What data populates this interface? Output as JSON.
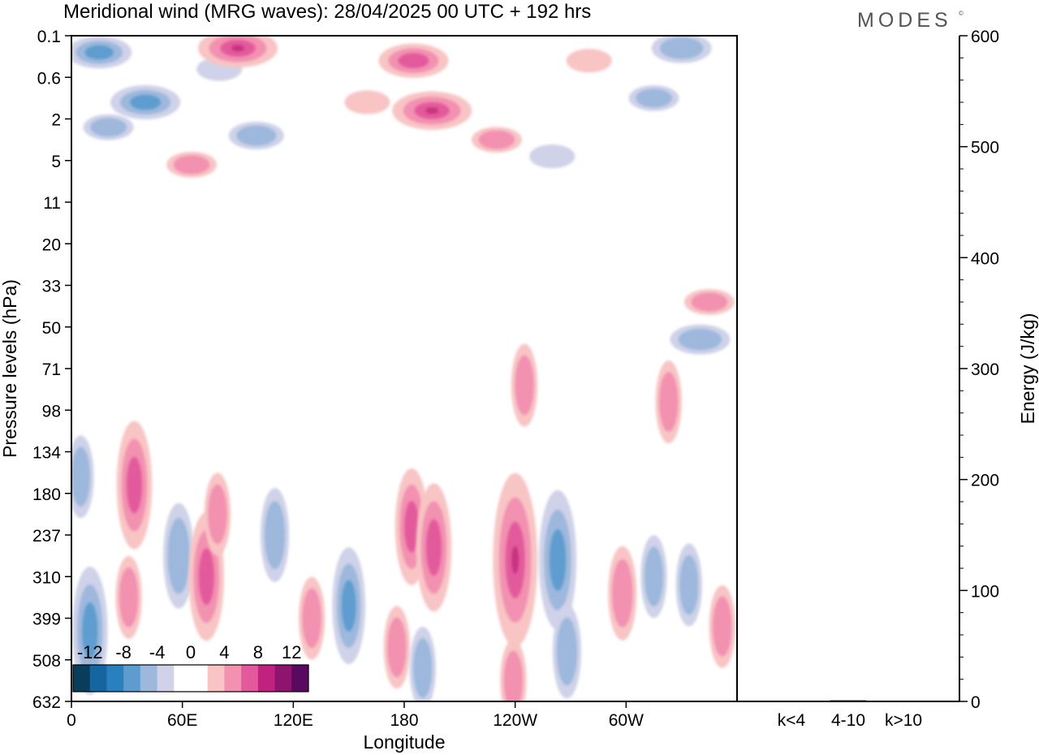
{
  "chart_data": {
    "type": "heatmap",
    "title": "Meridional wind (MRG waves):  28/04/2025  00 UTC  + 192 hrs",
    "brand": "MODES",
    "brand_mark": "©",
    "xlabel": "Longitude",
    "ylabel": "Pressure levels (hPa)",
    "y2label": "Energy (J/kg)",
    "x_ticks": [
      "0",
      "60E",
      "120E",
      "180",
      "120W",
      "60W"
    ],
    "y_levels": [
      "0.1",
      "0.6",
      "2",
      "5",
      "11",
      "20",
      "33",
      "50",
      "71",
      "98",
      "134",
      "180",
      "237",
      "310",
      "399",
      "508",
      "632"
    ],
    "energy_ticks": [
      0,
      100,
      200,
      300,
      400,
      500,
      600
    ],
    "energy_ylim": [
      0,
      600
    ],
    "energy_categories": [
      "k<4",
      "4-10",
      "k>10"
    ],
    "energy_values": [
      0,
      1,
      0
    ],
    "colorbar": {
      "tick_labels": [
        "-12",
        "-8",
        "-4",
        "0",
        "4",
        "8",
        "12"
      ],
      "colors": [
        "#0a3d5c",
        "#1565a0",
        "#2a7fbf",
        "#5e9ccf",
        "#9db8dc",
        "#cfd2e8",
        "#ffffff",
        "#ffffff",
        "#f8c4c4",
        "#f291b0",
        "#e35a9c",
        "#c2227f",
        "#8e1470",
        "#5a0a5e"
      ]
    },
    "colors": {
      "neg_light": "#cfd2e8",
      "neg_mid": "#9db8dc",
      "neg_strong": "#5e9ccf",
      "neg_darker": "#3f88c5",
      "pos_light": "#f8c4c4",
      "pos_mid": "#f291b0",
      "pos_strong": "#e35a9c",
      "pos_darker": "#c8327f"
    },
    "features": [
      {
        "sign": "neg",
        "lon": 15,
        "level_idx": 0.4,
        "amp": 6
      },
      {
        "sign": "neg",
        "lon": 40,
        "level_idx": 1.6,
        "amp": 7
      },
      {
        "sign": "neg",
        "lon": 20,
        "level_idx": 2.2,
        "amp": 3
      },
      {
        "sign": "neg",
        "lon": 80,
        "level_idx": 0.8,
        "amp": 2
      },
      {
        "sign": "neg",
        "lon": 100,
        "level_idx": 2.4,
        "amp": 4
      },
      {
        "sign": "neg",
        "lon": 260,
        "level_idx": 2.9,
        "amp": 2
      },
      {
        "sign": "neg",
        "lon": 330,
        "level_idx": 0.3,
        "amp": 5
      },
      {
        "sign": "neg",
        "lon": 315,
        "level_idx": 1.5,
        "amp": 3
      },
      {
        "sign": "neg",
        "lon": 340,
        "level_idx": 7.3,
        "amp": 5
      },
      {
        "sign": "pos",
        "lon": 90,
        "level_idx": 0.3,
        "amp": 9
      },
      {
        "sign": "pos",
        "lon": 185,
        "level_idx": 0.6,
        "amp": 7
      },
      {
        "sign": "pos",
        "lon": 195,
        "level_idx": 1.8,
        "amp": 9
      },
      {
        "sign": "pos",
        "lon": 230,
        "level_idx": 2.5,
        "amp": 3
      },
      {
        "sign": "pos",
        "lon": 160,
        "level_idx": 1.6,
        "amp": 2
      },
      {
        "sign": "pos",
        "lon": 65,
        "level_idx": 3.1,
        "amp": 3
      },
      {
        "sign": "pos",
        "lon": 280,
        "level_idx": 0.6,
        "amp": 2
      },
      {
        "sign": "pos",
        "lon": 345,
        "level_idx": 6.4,
        "amp": 3
      },
      {
        "sign": "pos",
        "lon": 245,
        "level_idx": 8.4,
        "amp": 3
      },
      {
        "sign": "pos",
        "lon": 323,
        "level_idx": 8.8,
        "amp": 3
      },
      {
        "sign": "pos",
        "lon": 34,
        "level_idx": 10.8,
        "amp": 7
      },
      {
        "sign": "pos",
        "lon": 31,
        "level_idx": 13.5,
        "amp": 3
      },
      {
        "sign": "neg",
        "lon": 58,
        "level_idx": 12.5,
        "amp": 5
      },
      {
        "sign": "pos",
        "lon": 73,
        "level_idx": 13.0,
        "amp": 7
      },
      {
        "sign": "pos",
        "lon": 79,
        "level_idx": 11.5,
        "amp": 3
      },
      {
        "sign": "neg",
        "lon": 10,
        "level_idx": 14.3,
        "amp": 7
      },
      {
        "sign": "neg",
        "lon": 5,
        "level_idx": 10.6,
        "amp": 3
      },
      {
        "sign": "neg",
        "lon": 110,
        "level_idx": 12.0,
        "amp": 4
      },
      {
        "sign": "pos",
        "lon": 130,
        "level_idx": 14.0,
        "amp": 3
      },
      {
        "sign": "neg",
        "lon": 150,
        "level_idx": 13.7,
        "amp": 6
      },
      {
        "sign": "pos",
        "lon": 184,
        "level_idx": 11.8,
        "amp": 6
      },
      {
        "sign": "pos",
        "lon": 196,
        "level_idx": 12.3,
        "amp": 7
      },
      {
        "sign": "pos",
        "lon": 176,
        "level_idx": 14.7,
        "amp": 3
      },
      {
        "sign": "neg",
        "lon": 190,
        "level_idx": 15.2,
        "amp": 3
      },
      {
        "sign": "pos",
        "lon": 240,
        "level_idx": 12.6,
        "amp": 11
      },
      {
        "sign": "pos",
        "lon": 239,
        "level_idx": 15.5,
        "amp": 3
      },
      {
        "sign": "neg",
        "lon": 263,
        "level_idx": 12.6,
        "amp": 8
      },
      {
        "sign": "neg",
        "lon": 268,
        "level_idx": 14.8,
        "amp": 4
      },
      {
        "sign": "pos",
        "lon": 298,
        "level_idx": 13.4,
        "amp": 4
      },
      {
        "sign": "neg",
        "lon": 315,
        "level_idx": 13.0,
        "amp": 3
      },
      {
        "sign": "neg",
        "lon": 334,
        "level_idx": 13.2,
        "amp": 3
      },
      {
        "sign": "pos",
        "lon": 352,
        "level_idx": 14.2,
        "amp": 3
      }
    ]
  }
}
